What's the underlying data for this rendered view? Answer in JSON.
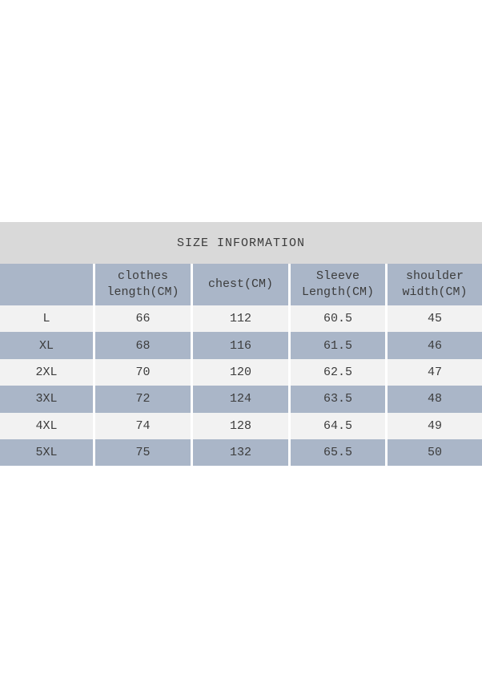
{
  "colors": {
    "title_band_bg": "#d9d9d9",
    "header_and_alt_row_bg": "#aab6c8",
    "light_row_bg": "#f2f2f2",
    "separator": "#ffffff",
    "text": "#3c3c3c"
  },
  "header_display": {
    "col0": "",
    "col1": "clothes\nlength(CM)",
    "col2": "chest(CM)",
    "col3": "Sleeve\nLength(CM)",
    "col4": "shoulder\nwidth(CM)"
  },
  "chart_data": {
    "type": "table",
    "title": "SIZE INFORMATION",
    "columns": [
      "",
      "clothes length(CM)",
      "chest(CM)",
      "Sleeve Length(CM)",
      "shoulder width(CM)"
    ],
    "rows": [
      [
        "L",
        "66",
        "112",
        "60.5",
        "45"
      ],
      [
        "XL",
        "68",
        "116",
        "61.5",
        "46"
      ],
      [
        "2XL",
        "70",
        "120",
        "62.5",
        "47"
      ],
      [
        "3XL",
        "72",
        "124",
        "63.5",
        "48"
      ],
      [
        "4XL",
        "74",
        "128",
        "64.5",
        "49"
      ],
      [
        "5XL",
        "75",
        "132",
        "65.5",
        "50"
      ]
    ]
  }
}
